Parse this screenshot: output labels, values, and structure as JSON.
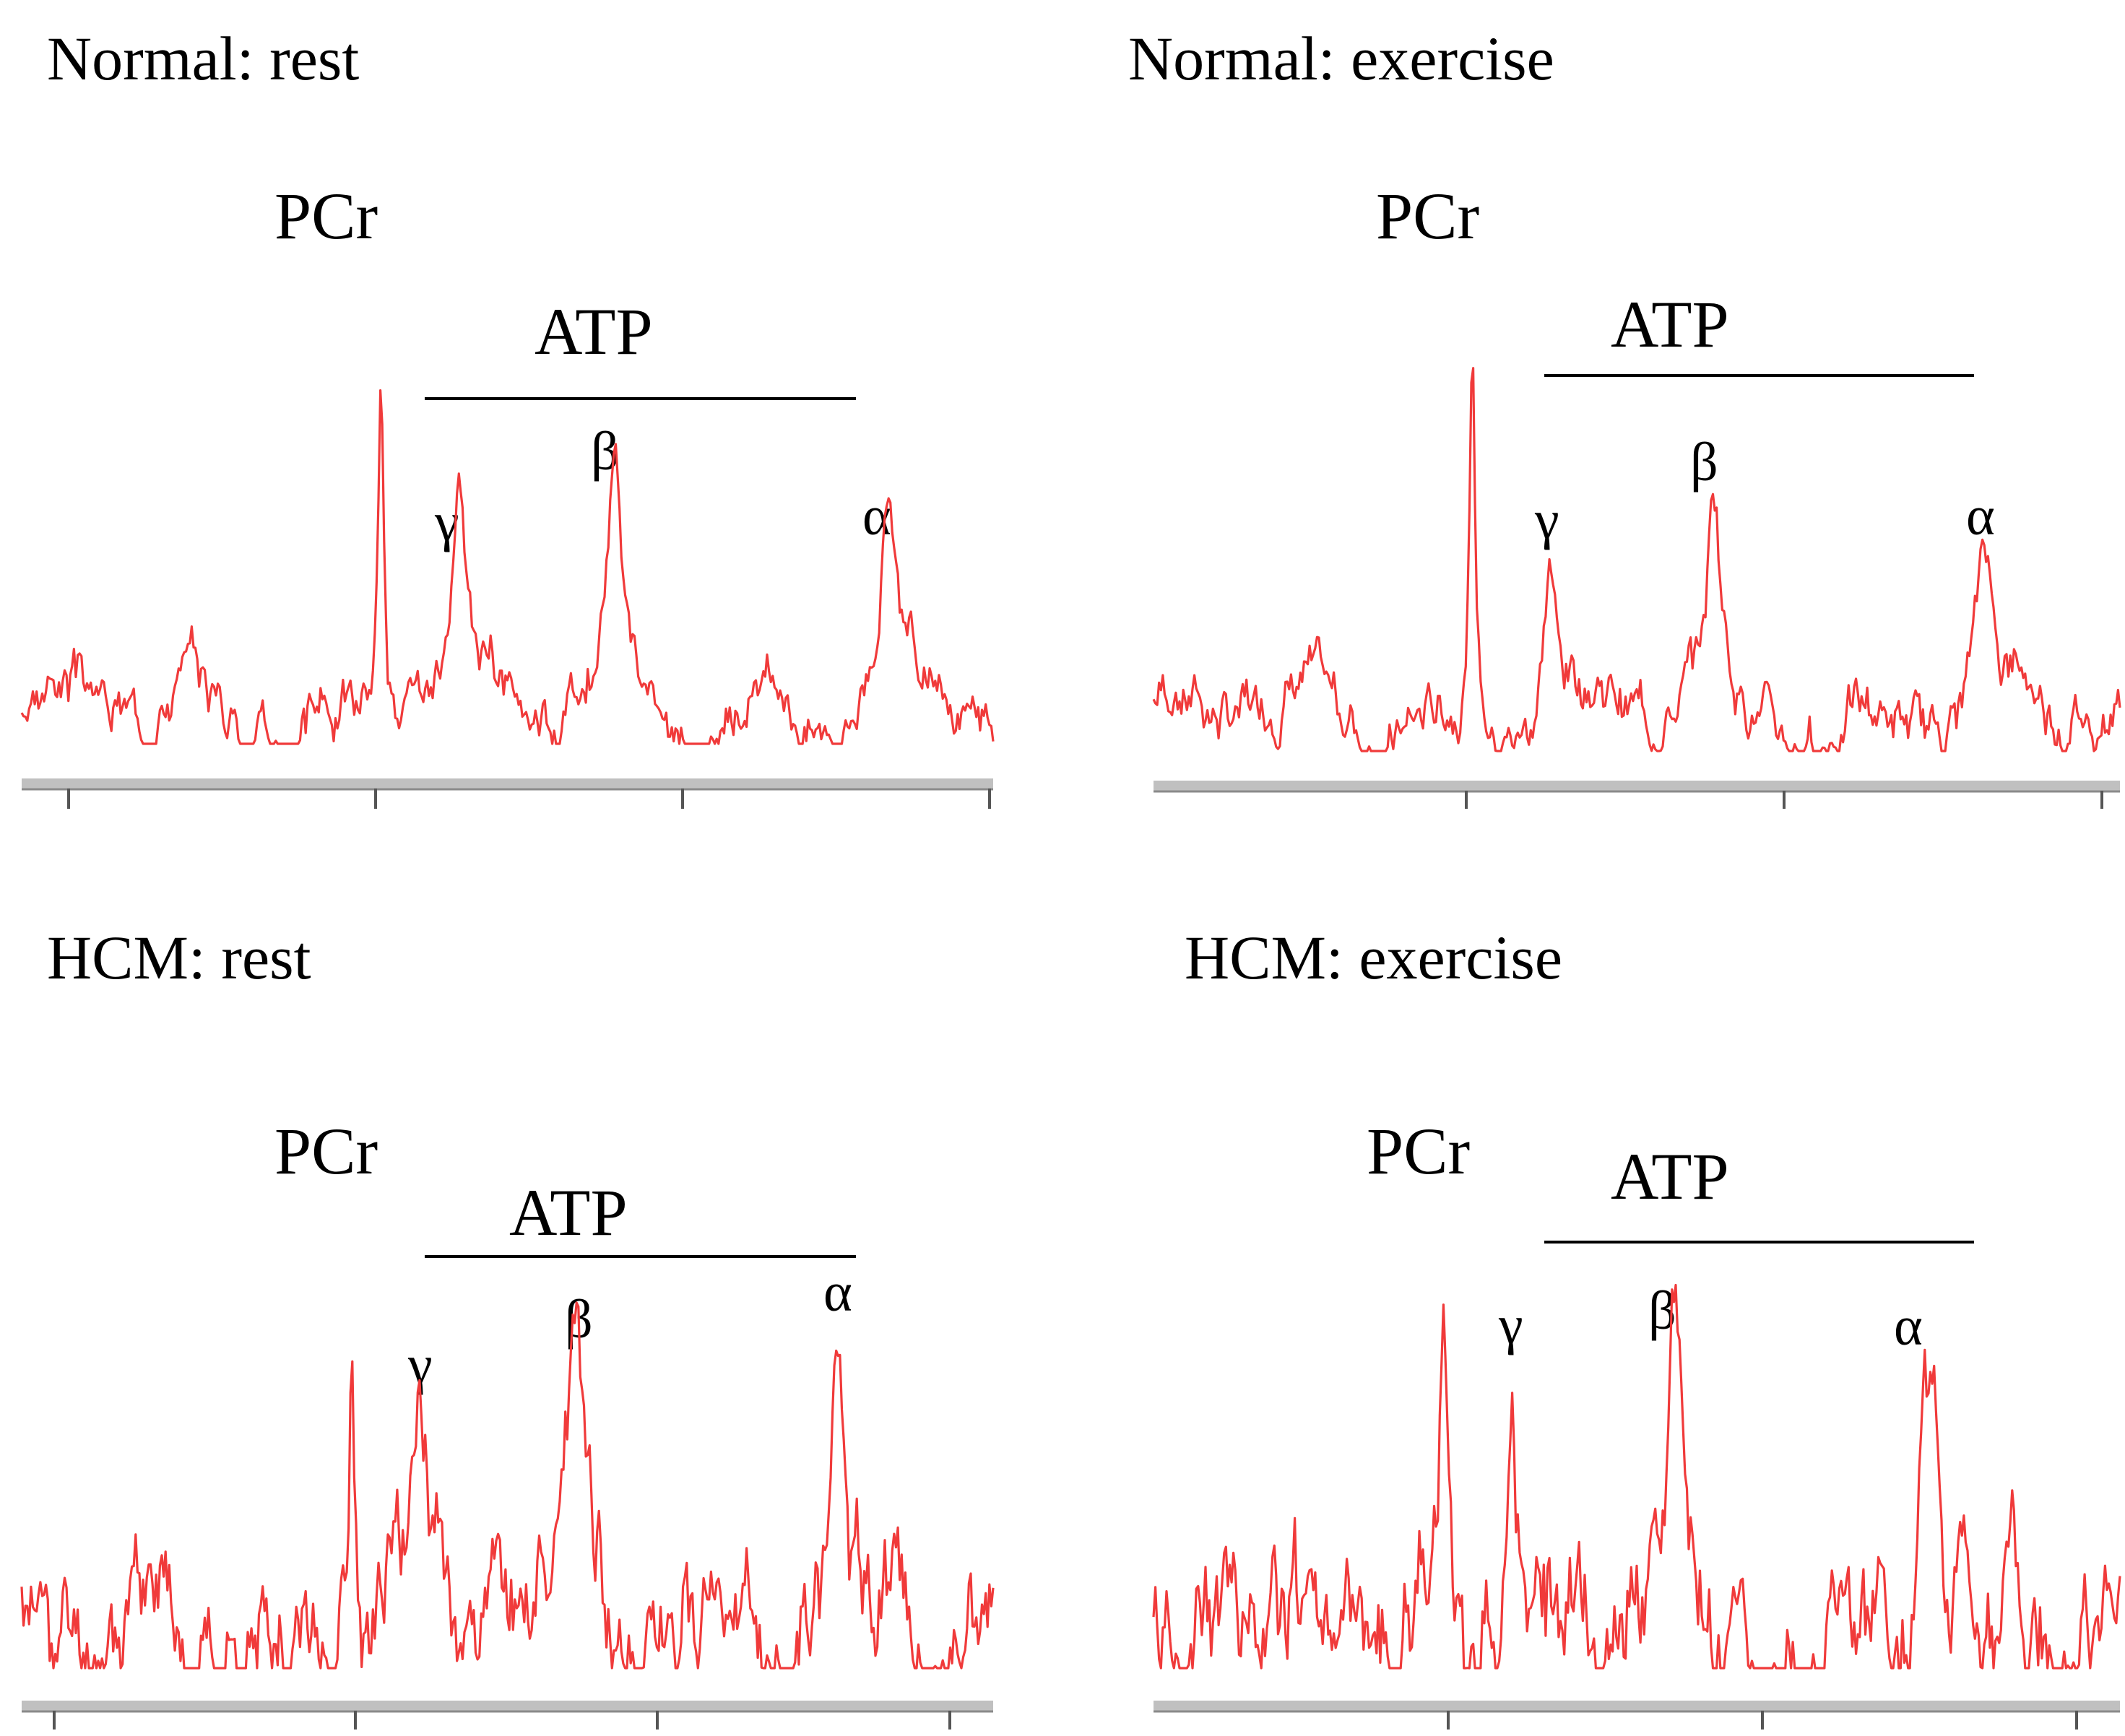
{
  "colors": {
    "spectrum": "#f03a3a",
    "label": "#000000",
    "axis": "#bdbdbd"
  },
  "chart_data": [
    {
      "type": "line",
      "title": "Normal: rest",
      "xlabel": "",
      "ylabel": "",
      "x_range": [
        0,
        100
      ],
      "y_range": [
        0,
        1.2
      ],
      "grid": false,
      "peaks": [
        {
          "label": "PCr",
          "x": 37,
          "height": 1.0,
          "width": 0.35
        },
        {
          "label": "γ",
          "x": 45,
          "height": 0.46,
          "width": 0.7
        },
        {
          "label": "β",
          "x": 61,
          "height": 0.64,
          "width": 0.9
        },
        {
          "label": "α",
          "x": 89,
          "height": 0.45,
          "width": 1.0
        }
      ],
      "annotations": {
        "pcr": "PCr",
        "atp": "ATP",
        "gamma": "γ",
        "beta": "β",
        "alpha": "α"
      },
      "noise_level": 0.1,
      "baseline_ticks": 4,
      "seed": 3
    },
    {
      "type": "line",
      "title": "Normal: exercise",
      "xlabel": "",
      "ylabel": "",
      "x_range": [
        0,
        100
      ],
      "y_range": [
        0,
        1.2
      ],
      "grid": false,
      "peaks": [
        {
          "label": "PCr",
          "x": 33,
          "height": 1.0,
          "width": 0.35
        },
        {
          "label": "γ",
          "x": 41,
          "height": 0.42,
          "width": 0.7
        },
        {
          "label": "β",
          "x": 58,
          "height": 0.55,
          "width": 0.8
        },
        {
          "label": "α",
          "x": 86,
          "height": 0.42,
          "width": 0.9
        }
      ],
      "annotations": {
        "pcr": "PCr",
        "atp": "ATP",
        "gamma": "γ",
        "beta": "β",
        "alpha": "α"
      },
      "noise_level": 0.1,
      "baseline_ticks": 4,
      "seed": 7
    },
    {
      "type": "line",
      "title": "HCM: rest",
      "xlabel": "",
      "ylabel": "",
      "x_range": [
        0,
        100
      ],
      "y_range": [
        0,
        1.2
      ],
      "grid": false,
      "peaks": [
        {
          "label": "PCr",
          "x": 34,
          "height": 1.0,
          "width": 0.35
        },
        {
          "label": "γ",
          "x": 41,
          "height": 0.62,
          "width": 1.2
        },
        {
          "label": "β",
          "x": 57,
          "height": 0.8,
          "width": 1.4
        },
        {
          "label": "α",
          "x": 84,
          "height": 0.82,
          "width": 0.9
        }
      ],
      "annotations": {
        "pcr": "PCr",
        "atp": "ATP",
        "gamma": "γ",
        "beta": "β",
        "alpha": "α"
      },
      "noise_level": 0.22,
      "baseline_ticks": 4,
      "seed": 11
    },
    {
      "type": "line",
      "title": "HCM: exercise",
      "xlabel": "",
      "ylabel": "",
      "x_range": [
        0,
        100
      ],
      "y_range": [
        0,
        1.2
      ],
      "grid": false,
      "peaks": [
        {
          "label": "PCr",
          "x": 30,
          "height": 1.0,
          "width": 0.6
        },
        {
          "label": "γ",
          "x": 37,
          "height": 0.78,
          "width": 0.6
        },
        {
          "label": "β",
          "x": 54,
          "height": 0.9,
          "width": 1.0
        },
        {
          "label": "α",
          "x": 80,
          "height": 0.75,
          "width": 1.2
        }
      ],
      "annotations": {
        "pcr": "PCr",
        "atp": "ATP",
        "gamma": "γ",
        "beta": "β",
        "alpha": "α"
      },
      "noise_level": 0.25,
      "baseline_ticks": 4,
      "seed": 19
    }
  ]
}
